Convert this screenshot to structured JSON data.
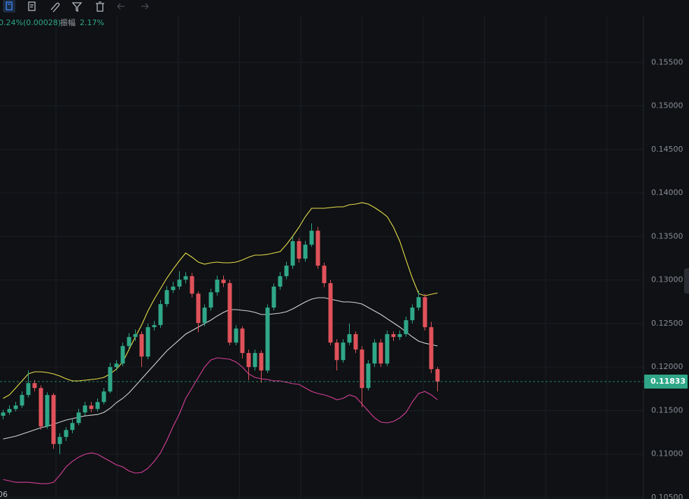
{
  "info": {
    "change": "0.24%(0.00028)",
    "amplitude_label": "振幅",
    "amplitude": "2.17%"
  },
  "chart_data": {
    "type": "candlestick",
    "up_color": "#2fa788",
    "down_color": "#e0525a",
    "open": [
      0.1144,
      0.11478,
      0.11518,
      0.11558,
      0.11679,
      0.11815,
      0.11759,
      0.11317,
      0.11679,
      0.11116,
      0.11197,
      0.11277,
      0.11357,
      0.11478,
      0.11558,
      0.11518,
      0.11598,
      0.11719,
      0.12,
      0.1204,
      0.12241,
      0.12345,
      0.12378,
      0.1212,
      0.12458,
      0.12482,
      0.12723,
      0.12884,
      0.12924,
      0.13004,
      0.13044,
      0.12843,
      0.12506,
      0.12683,
      0.12859,
      0.13004,
      0.12964,
      0.12281,
      0.12442,
      0.12161,
      0.12,
      0.12161,
      0.1196,
      0.12683,
      0.12924,
      0.13044,
      0.13165,
      0.13446,
      0.13245,
      0.13406,
      0.13566,
      0.13165,
      0.12964,
      0.12281,
      0.1208,
      0.12281,
      0.12378,
      0.12201,
      0.11759,
      0.1204,
      0.12281,
      0.1204,
      0.12378,
      0.12345,
      0.12378,
      0.12538,
      0.12683,
      0.12803,
      0.12458,
      0.11976
    ],
    "high": [
      0.1151,
      0.1156,
      0.116,
      0.1172,
      0.1196,
      0.1185,
      0.1179,
      0.1171,
      0.117,
      0.1124,
      0.1131,
      0.114,
      0.1152,
      0.116,
      0.116,
      0.1164,
      0.1176,
      0.1205,
      0.1208,
      0.1228,
      0.1239,
      0.1243,
      0.1241,
      0.125,
      0.1253,
      0.1277,
      0.1293,
      0.1298,
      0.131,
      0.1309,
      0.1308,
      0.1287,
      0.1272,
      0.129,
      0.1305,
      0.1305,
      0.13,
      0.1248,
      0.1247,
      0.122,
      0.122,
      0.1219,
      0.1272,
      0.1296,
      0.1309,
      0.1321,
      0.135,
      0.1348,
      0.1345,
      0.1365,
      0.1361,
      0.132,
      0.13,
      0.1232,
      0.1232,
      0.125,
      0.1241,
      0.1224,
      0.1208,
      0.1232,
      0.1232,
      0.1242,
      0.1241,
      0.1242,
      0.1258,
      0.1272,
      0.1288,
      0.1284,
      0.1252,
      0.12
    ],
    "low": [
      0.114,
      0.1145,
      0.1149,
      0.1153,
      0.1165,
      0.1172,
      0.1128,
      0.1129,
      0.1106,
      0.11,
      0.1115,
      0.1124,
      0.1133,
      0.1144,
      0.1148,
      0.1149,
      0.1157,
      0.117,
      0.1196,
      0.1201,
      0.1221,
      0.123,
      0.12,
      0.1209,
      0.1242,
      0.1245,
      0.1269,
      0.1285,
      0.1289,
      0.1296,
      0.128,
      0.124,
      0.1247,
      0.1265,
      0.1282,
      0.1292,
      0.1225,
      0.1225,
      0.121,
      0.1185,
      0.1196,
      0.1182,
      0.1193,
      0.1265,
      0.1289,
      0.1301,
      0.1313,
      0.132,
      0.1321,
      0.1338,
      0.1313,
      0.1292,
      0.1225,
      0.1196,
      0.1205,
      0.1225,
      0.1216,
      0.1154,
      0.1173,
      0.12,
      0.12,
      0.1201,
      0.123,
      0.1231,
      0.1235,
      0.125,
      0.1265,
      0.1242,
      0.1193,
      0.1172
    ],
    "close": [
      0.11478,
      0.11518,
      0.11558,
      0.11679,
      0.11815,
      0.11759,
      0.11317,
      0.11679,
      0.11116,
      0.11197,
      0.11277,
      0.11357,
      0.11478,
      0.11558,
      0.11518,
      0.11598,
      0.11719,
      0.12,
      0.1204,
      0.12241,
      0.12345,
      0.12378,
      0.1212,
      0.12458,
      0.12482,
      0.12723,
      0.12884,
      0.12924,
      0.13004,
      0.13044,
      0.12843,
      0.12506,
      0.12683,
      0.12859,
      0.13004,
      0.12964,
      0.12281,
      0.12442,
      0.12161,
      0.12,
      0.12161,
      0.1196,
      0.12683,
      0.12924,
      0.13044,
      0.13165,
      0.13446,
      0.13245,
      0.13406,
      0.13566,
      0.13165,
      0.12964,
      0.12281,
      0.1208,
      0.12281,
      0.12378,
      0.12201,
      0.11759,
      0.1204,
      0.12281,
      0.1204,
      0.12378,
      0.12345,
      0.12378,
      0.12538,
      0.12683,
      0.12803,
      0.12458,
      0.11976,
      0.11833
    ],
    "bands": [
      {
        "color": "#e9df4c",
        "values": [
          0.1164,
          0.1168,
          0.1176,
          0.11841,
          0.11921,
          0.11945,
          0.11945,
          0.11937,
          0.11921,
          0.11897,
          0.11865,
          0.11841,
          0.11841,
          0.11849,
          0.11857,
          0.11865,
          0.11881,
          0.11921,
          0.11977,
          0.12058,
          0.12202,
          0.12347,
          0.12483,
          0.12644,
          0.1278,
          0.12901,
          0.13021,
          0.13125,
          0.13222,
          0.1331,
          0.13262,
          0.13206,
          0.13182,
          0.13198,
          0.13206,
          0.13198,
          0.13198,
          0.13206,
          0.1323,
          0.13262,
          0.13286,
          0.13286,
          0.13294,
          0.1331,
          0.13326,
          0.13407,
          0.13503,
          0.13607,
          0.13728,
          0.13824,
          0.13824,
          0.13824,
          0.13832,
          0.1384,
          0.1384,
          0.13864,
          0.13872,
          0.13888,
          0.13872,
          0.13832,
          0.13784,
          0.13728,
          0.13607,
          0.13447,
          0.1323,
          0.13021,
          0.12844,
          0.1282,
          0.12836,
          0.12852
        ]
      },
      {
        "color": "#d6d6d6",
        "values": [
          0.11174,
          0.1119,
          0.11206,
          0.1123,
          0.11254,
          0.11279,
          0.11303,
          0.11319,
          0.11343,
          0.11367,
          0.11391,
          0.11407,
          0.11423,
          0.11439,
          0.11447,
          0.11455,
          0.11479,
          0.11527,
          0.11592,
          0.1164,
          0.11704,
          0.11784,
          0.11865,
          0.11945,
          0.12025,
          0.12106,
          0.12186,
          0.1225,
          0.12314,
          0.12379,
          0.12419,
          0.12459,
          0.12499,
          0.12539,
          0.12587,
          0.12628,
          0.1266,
          0.1266,
          0.12652,
          0.12644,
          0.12628,
          0.12604,
          0.12604,
          0.12612,
          0.1262,
          0.12636,
          0.12668,
          0.12708,
          0.12748,
          0.1278,
          0.12796,
          0.12796,
          0.1278,
          0.12764,
          0.12748,
          0.12748,
          0.1274,
          0.12724,
          0.12684,
          0.12644,
          0.12604,
          0.12555,
          0.12507,
          0.12459,
          0.12403,
          0.12347,
          0.12298,
          0.12274,
          0.12258,
          0.12242
        ]
      },
      {
        "color": "#d93f9a",
        "values": [
          0.10708,
          0.10692,
          0.10676,
          0.10676,
          0.10676,
          0.10668,
          0.1066,
          0.1066,
          0.10676,
          0.10757,
          0.10853,
          0.10917,
          0.10965,
          0.10998,
          0.11014,
          0.10998,
          0.10957,
          0.10917,
          0.10877,
          0.10853,
          0.10805,
          0.10781,
          0.10789,
          0.10837,
          0.10917,
          0.11014,
          0.11158,
          0.11319,
          0.11463,
          0.1164,
          0.1176,
          0.11881,
          0.12001,
          0.12082,
          0.12106,
          0.12098,
          0.1209,
          0.12058,
          0.12001,
          0.11921,
          0.11881,
          0.11865,
          0.11857,
          0.11841,
          0.11841,
          0.11825,
          0.11809,
          0.11801,
          0.1176,
          0.1172,
          0.11696,
          0.1168,
          0.11656,
          0.11624,
          0.1164,
          0.1168,
          0.11656,
          0.11576,
          0.11495,
          0.11415,
          0.11367,
          0.11359,
          0.11375,
          0.11415,
          0.11479,
          0.116,
          0.11696,
          0.1172,
          0.1168,
          0.11624
        ]
      }
    ],
    "last_price": {
      "value": 0.11833,
      "label": "0.11833"
    },
    "ylim": [
      0.10484,
      0.1604
    ],
    "yticks": [
      {
        "value": 0.105,
        "label": "0.10500"
      },
      {
        "value": 0.11,
        "label": "0.11000"
      },
      {
        "value": 0.115,
        "label": "0.11500"
      },
      {
        "value": 0.12,
        "label": "0.12000"
      },
      {
        "value": 0.125,
        "label": "0.12500"
      },
      {
        "value": 0.13,
        "label": "0.13000"
      },
      {
        "value": 0.135,
        "label": "0.13500"
      },
      {
        "value": 0.14,
        "label": "0.14000"
      },
      {
        "value": 0.145,
        "label": "0.14500"
      },
      {
        "value": 0.15,
        "label": "0.15000"
      },
      {
        "value": 0.155,
        "label": "0.15500"
      }
    ],
    "x_label": "06",
    "grid": true
  }
}
